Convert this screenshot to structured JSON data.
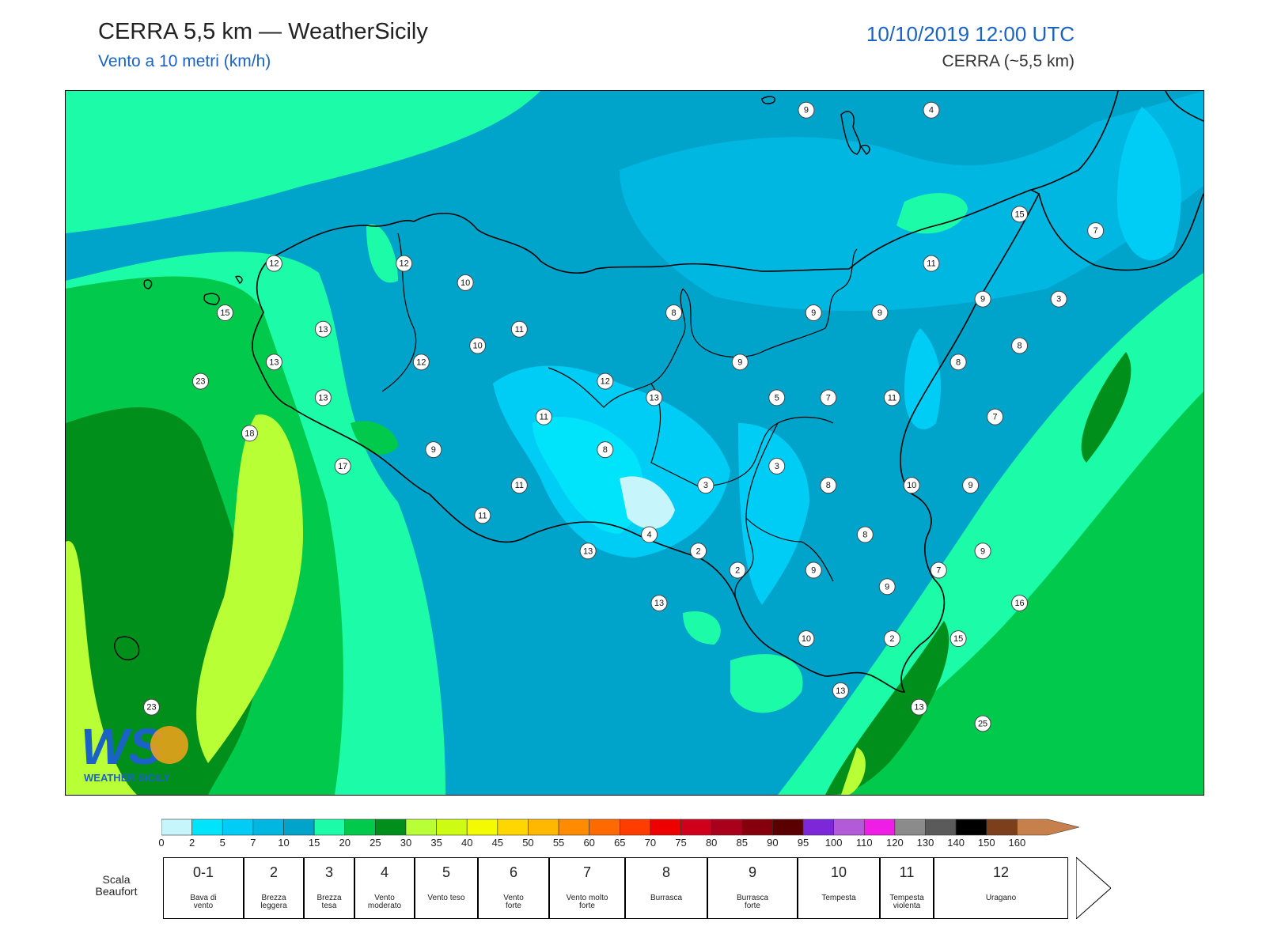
{
  "header": {
    "title": "CERRA 5,5 km — WeatherSicily",
    "subtitle": "Vento a 10 metri (km/h)",
    "datetime": "10/10/2019 12:00 UTC",
    "model": "CERRA (~5,5 km)"
  },
  "logo": {
    "letters": "WS",
    "text": "WEATHER SICILY"
  },
  "stations": [
    {
      "value": "9",
      "lon": 14.62,
      "lat": 38.8
    },
    {
      "value": "4",
      "lon": 15.13,
      "lat": 38.8
    },
    {
      "value": "15",
      "lon": 15.49,
      "lat": 38.42
    },
    {
      "value": "7",
      "lon": 15.8,
      "lat": 38.36
    },
    {
      "value": "12",
      "lon": 12.45,
      "lat": 38.24
    },
    {
      "value": "12",
      "lon": 12.98,
      "lat": 38.24
    },
    {
      "value": "10",
      "lon": 13.23,
      "lat": 38.17
    },
    {
      "value": "11",
      "lon": 15.13,
      "lat": 38.24
    },
    {
      "value": "9",
      "lon": 15.34,
      "lat": 38.11
    },
    {
      "value": "3",
      "lon": 15.65,
      "lat": 38.11
    },
    {
      "value": "15",
      "lon": 12.25,
      "lat": 38.06
    },
    {
      "value": "8",
      "lon": 14.08,
      "lat": 38.06
    },
    {
      "value": "9",
      "lon": 14.65,
      "lat": 38.06
    },
    {
      "value": "9",
      "lon": 14.92,
      "lat": 38.06
    },
    {
      "value": "13",
      "lon": 12.65,
      "lat": 38.0
    },
    {
      "value": "11",
      "lon": 13.45,
      "lat": 38.0
    },
    {
      "value": "10",
      "lon": 13.28,
      "lat": 37.94
    },
    {
      "value": "8",
      "lon": 15.49,
      "lat": 37.94
    },
    {
      "value": "13",
      "lon": 12.45,
      "lat": 37.88
    },
    {
      "value": "12",
      "lon": 13.05,
      "lat": 37.88
    },
    {
      "value": "9",
      "lon": 14.35,
      "lat": 37.88
    },
    {
      "value": "8",
      "lon": 15.24,
      "lat": 37.88
    },
    {
      "value": "23",
      "lon": 12.15,
      "lat": 37.81
    },
    {
      "value": "12",
      "lon": 13.8,
      "lat": 37.81
    },
    {
      "value": "13",
      "lon": 12.65,
      "lat": 37.75
    },
    {
      "value": "13",
      "lon": 14.0,
      "lat": 37.75
    },
    {
      "value": "5",
      "lon": 14.5,
      "lat": 37.75
    },
    {
      "value": "7",
      "lon": 14.71,
      "lat": 37.75
    },
    {
      "value": "11",
      "lon": 14.97,
      "lat": 37.75
    },
    {
      "value": "11",
      "lon": 13.55,
      "lat": 37.68
    },
    {
      "value": "7",
      "lon": 15.39,
      "lat": 37.68
    },
    {
      "value": "18",
      "lon": 12.35,
      "lat": 37.62
    },
    {
      "value": "9",
      "lon": 13.1,
      "lat": 37.56
    },
    {
      "value": "8",
      "lon": 13.8,
      "lat": 37.56
    },
    {
      "value": "17",
      "lon": 12.73,
      "lat": 37.5
    },
    {
      "value": "3",
      "lon": 14.5,
      "lat": 37.5
    },
    {
      "value": "11",
      "lon": 13.45,
      "lat": 37.43
    },
    {
      "value": "3",
      "lon": 14.21,
      "lat": 37.43
    },
    {
      "value": "8",
      "lon": 14.71,
      "lat": 37.43
    },
    {
      "value": "10",
      "lon": 15.05,
      "lat": 37.43
    },
    {
      "value": "9",
      "lon": 15.29,
      "lat": 37.43
    },
    {
      "value": "11",
      "lon": 13.3,
      "lat": 37.32
    },
    {
      "value": "4",
      "lon": 13.98,
      "lat": 37.25
    },
    {
      "value": "8",
      "lon": 14.86,
      "lat": 37.25
    },
    {
      "value": "13",
      "lon": 13.73,
      "lat": 37.19
    },
    {
      "value": "2",
      "lon": 14.18,
      "lat": 37.19
    },
    {
      "value": "9",
      "lon": 15.34,
      "lat": 37.19
    },
    {
      "value": "2",
      "lon": 14.34,
      "lat": 37.12
    },
    {
      "value": "9",
      "lon": 14.65,
      "lat": 37.12
    },
    {
      "value": "7",
      "lon": 15.16,
      "lat": 37.12
    },
    {
      "value": "9",
      "lon": 14.95,
      "lat": 37.06
    },
    {
      "value": "13",
      "lon": 14.02,
      "lat": 37.0
    },
    {
      "value": "16",
      "lon": 15.49,
      "lat": 37.0
    },
    {
      "value": "10",
      "lon": 14.62,
      "lat": 36.87
    },
    {
      "value": "2",
      "lon": 14.97,
      "lat": 36.87
    },
    {
      "value": "15",
      "lon": 15.24,
      "lat": 36.87
    },
    {
      "value": "13",
      "lon": 14.76,
      "lat": 36.68
    },
    {
      "value": "13",
      "lon": 15.08,
      "lat": 36.62
    },
    {
      "value": "25",
      "lon": 15.34,
      "lat": 36.56
    },
    {
      "value": "23",
      "lon": 11.95,
      "lat": 36.62
    }
  ],
  "colorbar": {
    "ticks": [
      "0",
      "2",
      "5",
      "7",
      "10",
      "15",
      "20",
      "25",
      "30",
      "35",
      "40",
      "45",
      "50",
      "55",
      "60",
      "65",
      "70",
      "75",
      "80",
      "85",
      "90",
      "95",
      "100",
      "110",
      "120",
      "130",
      "140",
      "150",
      "160"
    ],
    "colors": [
      "#c6f6fb",
      "#00e4fb",
      "#00cdf5",
      "#00b7e2",
      "#00a3c9",
      "#1bfba8",
      "#00c94b",
      "#008f1b",
      "#b8ff36",
      "#cdfb11",
      "#f4fb00",
      "#ffd600",
      "#ffb800",
      "#ff8b00",
      "#ff6a00",
      "#ff3d00",
      "#ef0000",
      "#d0001d",
      "#a9001b",
      "#85000b",
      "#5a0000",
      "#7c27d8",
      "#b35ad8",
      "#ee1ee6",
      "#8b8b8b",
      "#5a5a5a",
      "#000000",
      "#7b3f1c",
      "#c7804b"
    ]
  },
  "beaufort": {
    "label_line1": "Scala",
    "label_line2": "Beaufort",
    "items": [
      {
        "num": "0-1",
        "name1": "Bava di",
        "name2": "vento"
      },
      {
        "num": "2",
        "name1": "Brezza",
        "name2": "leggera"
      },
      {
        "num": "3",
        "name1": "Brezza",
        "name2": "tesa"
      },
      {
        "num": "4",
        "name1": "Vento",
        "name2": "moderato"
      },
      {
        "num": "5",
        "name1": "Vento teso",
        "name2": ""
      },
      {
        "num": "6",
        "name1": "Vento",
        "name2": "forte"
      },
      {
        "num": "7",
        "name1": "Vento molto",
        "name2": "forte"
      },
      {
        "num": "8",
        "name1": "Burrasca",
        "name2": ""
      },
      {
        "num": "9",
        "name1": "Burrasca",
        "name2": "forte"
      },
      {
        "num": "10",
        "name1": "Tempesta",
        "name2": ""
      },
      {
        "num": "11",
        "name1": "Tempesta",
        "name2": "violenta"
      },
      {
        "num": "12",
        "name1": "Uragano",
        "name2": ""
      }
    ]
  }
}
